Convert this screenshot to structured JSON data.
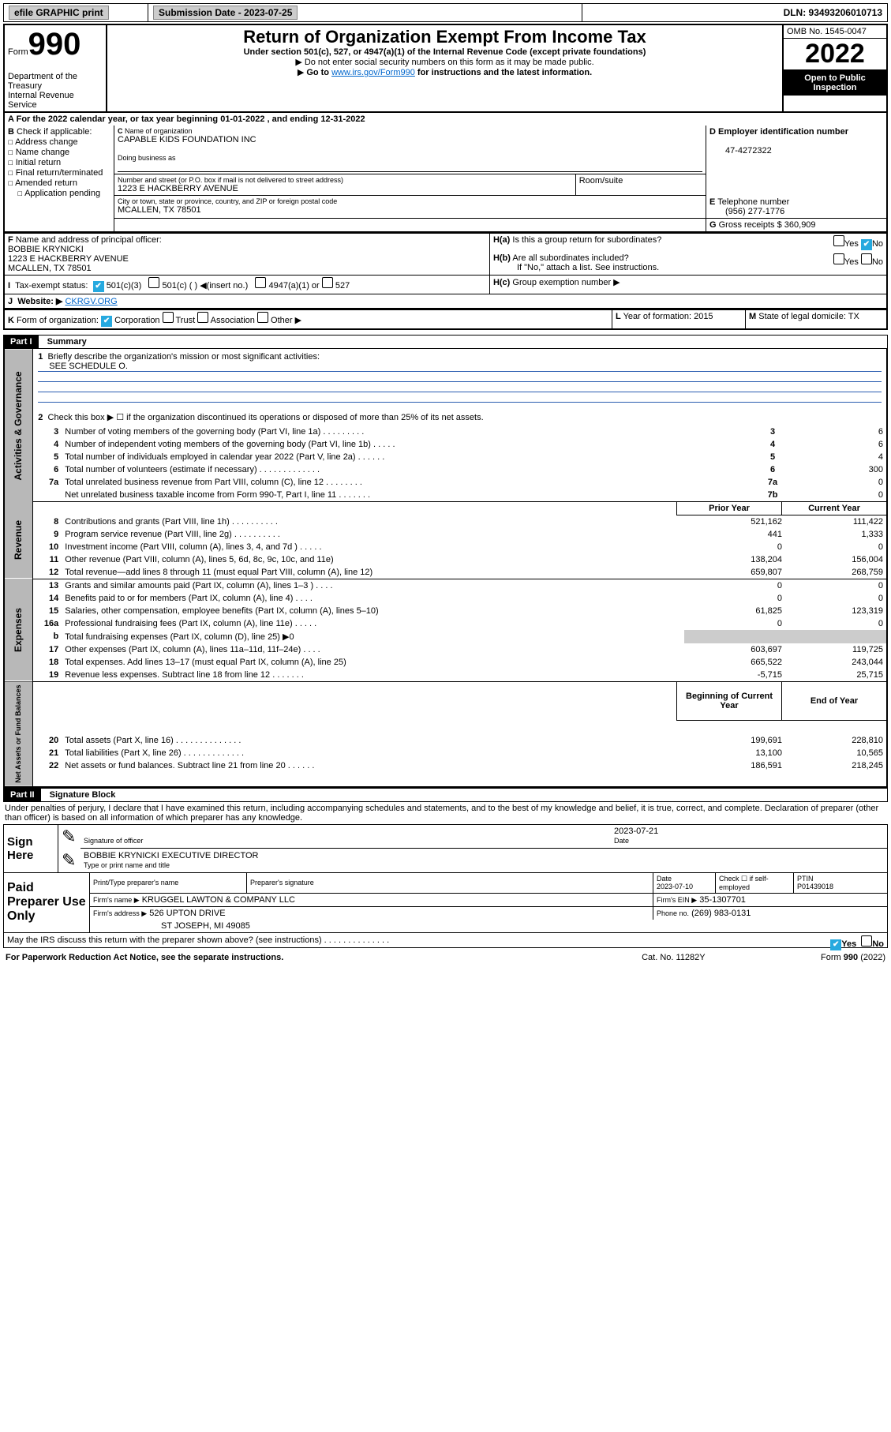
{
  "topbar": {
    "efile_label": "efile GRAPHIC print",
    "submission_label": "Submission Date - 2023-07-25",
    "dln_label": "DLN: 93493206010713"
  },
  "header": {
    "form_prefix": "Form",
    "form_number": "990",
    "title": "Return of Organization Exempt From Income Tax",
    "subtitle": "Under section 501(c), 527, or 4947(a)(1) of the Internal Revenue Code (except private foundations)",
    "note1": "Do not enter social security numbers on this form as it may be made public.",
    "note2_pre": "Go to ",
    "note2_link": "www.irs.gov/Form990",
    "note2_post": " for instructions and the latest information.",
    "dept": "Department of the Treasury",
    "irs": "Internal Revenue Service",
    "omb": "OMB No. 1545-0047",
    "year": "2022",
    "open": "Open to Public Inspection"
  },
  "A": {
    "text": "For the 2022 calendar year, or tax year beginning 01-01-2022    , and ending 12-31-2022"
  },
  "B": {
    "label": "Check if applicable:",
    "items": [
      "Address change",
      "Name change",
      "Initial return",
      "Final return/terminated",
      "Amended return",
      "Application pending"
    ]
  },
  "C": {
    "name_label": "Name of organization",
    "name": "CAPABLE KIDS FOUNDATION INC",
    "dba_label": "Doing business as",
    "street_label": "Number and street (or P.O. box if mail is not delivered to street address)",
    "street": "1223 E HACKBERRY AVENUE",
    "room_label": "Room/suite",
    "city_label": "City or town, state or province, country, and ZIP or foreign postal code",
    "city": "MCALLEN, TX  78501"
  },
  "D": {
    "label": "Employer identification number",
    "value": "47-4272322"
  },
  "E": {
    "label": "Telephone number",
    "value": "(956) 277-1776"
  },
  "G": {
    "label": "Gross receipts $",
    "value": "360,909"
  },
  "F": {
    "label": "Name and address of principal officer:",
    "name": "BOBBIE KRYNICKI",
    "street": "1223 E HACKBERRY AVENUE",
    "city": "MCALLEN, TX  78501"
  },
  "H": {
    "a": "Is this a group return for subordinates?",
    "b": "Are all subordinates included?",
    "bnote": "If \"No,\" attach a list. See instructions.",
    "c": "Group exemption number ▶",
    "yes": "Yes",
    "no": "No"
  },
  "I": {
    "label": "Tax-exempt status:",
    "opt1": "501(c)(3)",
    "opt2": "501(c) (  ) ◀(insert no.)",
    "opt3": "4947(a)(1) or",
    "opt4": "527"
  },
  "J": {
    "label": "Website: ▶",
    "value": "CKRGV.ORG"
  },
  "K": {
    "label": "Form of organization:",
    "opts": [
      "Corporation",
      "Trust",
      "Association",
      "Other ▶"
    ]
  },
  "L": {
    "label": "Year of formation:",
    "value": "2015"
  },
  "M": {
    "label": "State of legal domicile:",
    "value": "TX"
  },
  "part1": {
    "title": "Part I",
    "heading": "Summary",
    "q1": "Briefly describe the organization's mission or most significant activities:",
    "q1a": "SEE SCHEDULE O.",
    "q2": "Check this box ▶ ☐ if the organization discontinued its operations or disposed of more than 25% of its net assets.",
    "rows_ag": [
      {
        "n": "3",
        "t": "Number of voting members of the governing body (Part VI, line 1a)   .   .   .   .   .   .   .   .   .",
        "b": "3",
        "v": "6"
      },
      {
        "n": "4",
        "t": "Number of independent voting members of the governing body (Part VI, line 1b)   .   .   .   .   .",
        "b": "4",
        "v": "6"
      },
      {
        "n": "5",
        "t": "Total number of individuals employed in calendar year 2022 (Part V, line 2a)   .   .   .   .   .   .",
        "b": "5",
        "v": "4"
      },
      {
        "n": "6",
        "t": "Total number of volunteers (estimate if necessary)   .   .   .   .   .   .   .   .   .   .   .   .   .",
        "b": "6",
        "v": "300"
      },
      {
        "n": "7a",
        "t": "Total unrelated business revenue from Part VIII, column (C), line 12   .   .   .   .   .   .   .   .",
        "b": "7a",
        "v": "0"
      },
      {
        "n": "",
        "t": "Net unrelated business taxable income from Form 990-T, Part I, line 11   .   .   .   .   .   .   .",
        "b": "7b",
        "v": "0"
      }
    ],
    "prior": "Prior Year",
    "current": "Current Year",
    "rev": [
      {
        "n": "8",
        "t": "Contributions and grants (Part VIII, line 1h)   .   .   .   .   .   .   .   .   .   .",
        "p": "521,162",
        "c": "111,422"
      },
      {
        "n": "9",
        "t": "Program service revenue (Part VIII, line 2g)   .   .   .   .   .   .   .   .   .   .",
        "p": "441",
        "c": "1,333"
      },
      {
        "n": "10",
        "t": "Investment income (Part VIII, column (A), lines 3, 4, and 7d )   .   .   .   .   .",
        "p": "0",
        "c": "0"
      },
      {
        "n": "11",
        "t": "Other revenue (Part VIII, column (A), lines 5, 6d, 8c, 9c, 10c, and 11e)",
        "p": "138,204",
        "c": "156,004"
      },
      {
        "n": "12",
        "t": "Total revenue—add lines 8 through 11 (must equal Part VIII, column (A), line 12)",
        "p": "659,807",
        "c": "268,759"
      }
    ],
    "exp": [
      {
        "n": "13",
        "t": "Grants and similar amounts paid (Part IX, column (A), lines 1–3 )   .   .   .   .",
        "p": "0",
        "c": "0"
      },
      {
        "n": "14",
        "t": "Benefits paid to or for members (Part IX, column (A), line 4)   .   .   .   .",
        "p": "0",
        "c": "0"
      },
      {
        "n": "15",
        "t": "Salaries, other compensation, employee benefits (Part IX, column (A), lines 5–10)",
        "p": "61,825",
        "c": "123,319"
      },
      {
        "n": "16a",
        "t": "Professional fundraising fees (Part IX, column (A), line 11e)   .   .   .   .   .",
        "p": "0",
        "c": "0"
      },
      {
        "n": "b",
        "t": "Total fundraising expenses (Part IX, column (D), line 25) ▶0",
        "p": "",
        "c": ""
      },
      {
        "n": "17",
        "t": "Other expenses (Part IX, column (A), lines 11a–11d, 11f–24e)   .   .   .   .",
        "p": "603,697",
        "c": "119,725"
      },
      {
        "n": "18",
        "t": "Total expenses. Add lines 13–17 (must equal Part IX, column (A), line 25)",
        "p": "665,522",
        "c": "243,044"
      },
      {
        "n": "19",
        "t": "Revenue less expenses. Subtract line 18 from line 12   .   .   .   .   .   .   .",
        "p": "-5,715",
        "c": "25,715"
      }
    ],
    "boy": "Beginning of Current Year",
    "eoy": "End of Year",
    "na": [
      {
        "n": "20",
        "t": "Total assets (Part X, line 16)   .   .   .   .   .   .   .   .   .   .   .   .   .   .",
        "p": "199,691",
        "c": "228,810"
      },
      {
        "n": "21",
        "t": "Total liabilities (Part X, line 26)   .   .   .   .   .   .   .   .   .   .   .   .   .",
        "p": "13,100",
        "c": "10,565"
      },
      {
        "n": "22",
        "t": "Net assets or fund balances. Subtract line 21 from line 20   .   .   .   .   .   .",
        "p": "186,591",
        "c": "218,245"
      }
    ],
    "side_ag": "Activities & Governance",
    "side_rev": "Revenue",
    "side_exp": "Expenses",
    "side_na": "Net Assets or Fund Balances"
  },
  "part2": {
    "title": "Part II",
    "heading": "Signature Block",
    "decl": "Under penalties of perjury, I declare that I have examined this return, including accompanying schedules and statements, and to the best of my knowledge and belief, it is true, correct, and complete. Declaration of preparer (other than officer) is based on all information of which preparer has any knowledge.",
    "sign_here": "Sign Here",
    "sig_officer": "Signature of officer",
    "date": "Date",
    "date_val": "2023-07-21",
    "officer": "BOBBIE KRYNICKI  EXECUTIVE DIRECTOR",
    "officer_label": "Type or print name and title",
    "paid": "Paid Preparer Use Only",
    "prep_name_label": "Print/Type preparer's name",
    "prep_sig": "Preparer's signature",
    "prep_date_label": "Date",
    "prep_date": "2023-07-10",
    "check_if": "Check ☐ if self-employed",
    "ptin_label": "PTIN",
    "ptin": "P01439018",
    "firm_name_label": "Firm's name   ▶",
    "firm_name": "KRUGGEL LAWTON & COMPANY LLC",
    "firm_ein_label": "Firm's EIN ▶",
    "firm_ein": "35-1307701",
    "firm_addr_label": "Firm's address ▶",
    "firm_addr1": "526 UPTON DRIVE",
    "firm_addr2": "ST JOSEPH, MI  49085",
    "phone_label": "Phone no.",
    "phone": "(269) 983-0131",
    "discuss": "May the IRS discuss this return with the preparer shown above? (see instructions)   .   .   .   .   .   .   .   .   .   .   .   .   .   .",
    "footer_l": "For Paperwork Reduction Act Notice, see the separate instructions.",
    "footer_c": "Cat. No. 11282Y",
    "footer_r": "Form 990 (2022)"
  }
}
